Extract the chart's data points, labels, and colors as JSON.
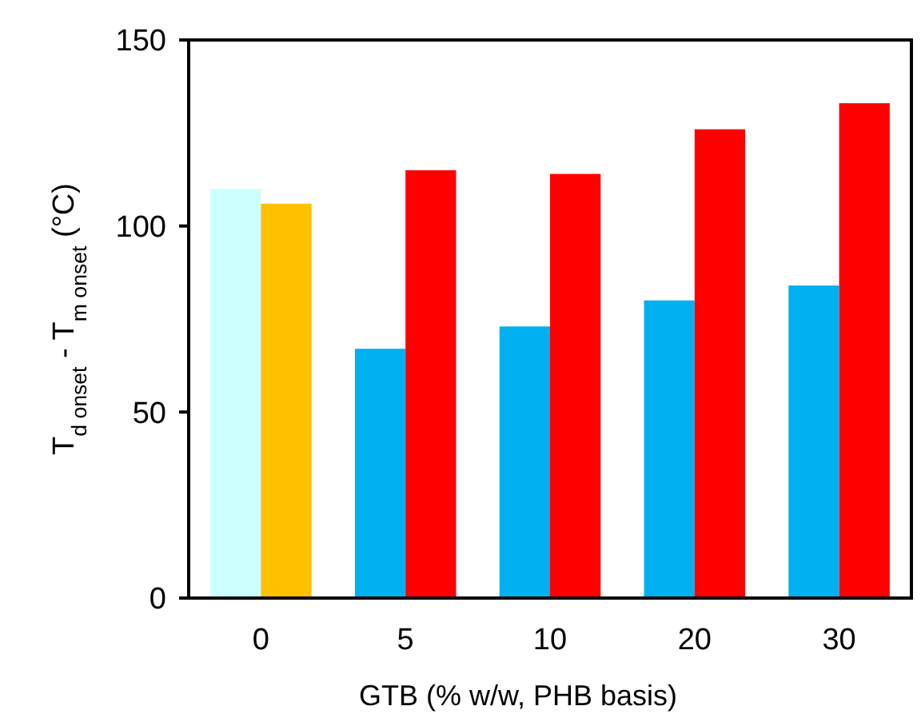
{
  "chart_data": {
    "type": "bar",
    "xlabel": "GTB (% w/w, PHB basis)",
    "ylabel": "T$_{d onset}$ - T$_{m onset}$ (°C)",
    "categories": [
      "0",
      "5",
      "10",
      "20",
      "30"
    ],
    "series": [
      {
        "colors": [
          "#ccffff",
          "#00b0f0",
          "#00b0f0",
          "#00b0f0",
          "#00b0f0"
        ],
        "values": [
          110,
          67,
          73,
          80,
          84
        ]
      },
      {
        "colors": [
          "#ffc000",
          "#ff0000",
          "#ff0000",
          "#ff0000",
          "#ff0000"
        ],
        "values": [
          106,
          115,
          114,
          126,
          133
        ]
      }
    ],
    "ylim": [
      0,
      150
    ],
    "yticks": [
      0,
      50,
      100,
      150
    ],
    "grid": false
  }
}
